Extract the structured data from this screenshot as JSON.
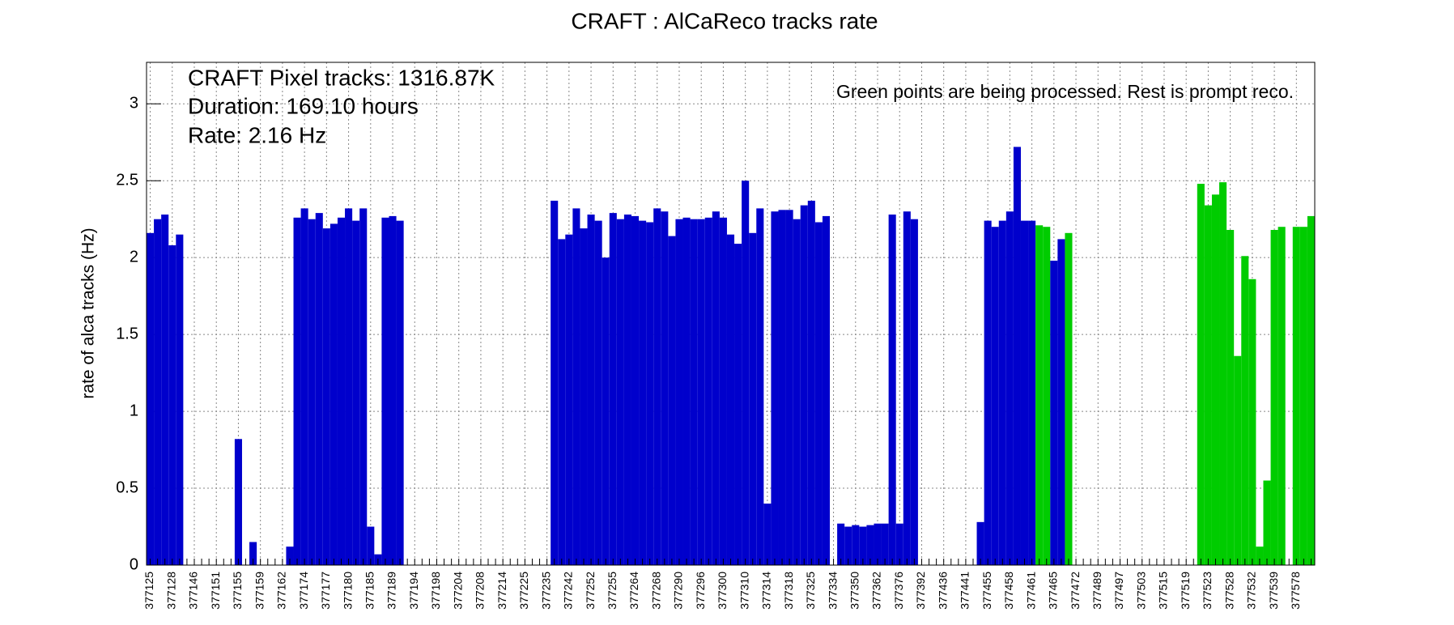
{
  "chart_data": {
    "type": "bar",
    "title": "CRAFT : AlCaReco tracks rate",
    "y_label": "rate of alca tracks (Hz)",
    "annotations": [
      "CRAFT Pixel tracks: 1316.87K",
      "Duration: 169.10 hours",
      "Rate: 2.16 Hz",
      "Green points are being processed. Rest is prompt reco."
    ],
    "categories": [
      "377125",
      null,
      null,
      "377128",
      null,
      null,
      "377146",
      null,
      null,
      "377151",
      null,
      null,
      "377155",
      null,
      null,
      "377159",
      null,
      null,
      "377162",
      null,
      null,
      "377174",
      null,
      null,
      "377177",
      null,
      null,
      "377180",
      null,
      null,
      "377185",
      null,
      null,
      "377189",
      null,
      null,
      "377194",
      null,
      null,
      "377198",
      null,
      null,
      "377204",
      null,
      null,
      "377208",
      null,
      null,
      "377214",
      null,
      null,
      "377225",
      null,
      null,
      "377235",
      null,
      null,
      "377242",
      null,
      null,
      "377252",
      null,
      null,
      "377255",
      null,
      null,
      "377264",
      null,
      null,
      "377268",
      null,
      null,
      "377290",
      null,
      null,
      "377296",
      null,
      null,
      "377300",
      null,
      null,
      "377310",
      null,
      null,
      "377314",
      null,
      null,
      "377318",
      null,
      null,
      "377325",
      null,
      null,
      "377334",
      null,
      null,
      "377350",
      null,
      null,
      "377362",
      null,
      null,
      "377376",
      null,
      null,
      "377392",
      null,
      null,
      "377436",
      null,
      null,
      "377441",
      null,
      null,
      "377455",
      null,
      null,
      "377458",
      null,
      null,
      "377461",
      null,
      null,
      "377465",
      null,
      null,
      "377472",
      null,
      null,
      "377489",
      null,
      null,
      "377497",
      null,
      null,
      "377503",
      null,
      null,
      "377515",
      null,
      null,
      "377519",
      null,
      null,
      "377523",
      null,
      null,
      "377528",
      null,
      null,
      "377532",
      null,
      null,
      "377539",
      null,
      null,
      "377578",
      null,
      null
    ],
    "values": [
      2.16,
      2.25,
      2.28,
      2.08,
      2.15,
      0,
      0,
      0,
      0,
      0,
      0,
      0,
      0.82,
      0,
      0.15,
      0,
      0,
      0,
      0,
      0.12,
      2.26,
      2.32,
      2.25,
      2.29,
      2.19,
      2.22,
      2.26,
      2.32,
      2.24,
      2.32,
      0.25,
      0.07,
      2.26,
      2.27,
      2.24,
      0,
      0,
      0,
      0,
      0,
      0,
      0,
      0,
      0,
      0,
      0,
      0,
      0,
      0,
      0,
      0,
      0,
      0,
      0,
      0,
      2.37,
      2.12,
      2.15,
      2.32,
      2.19,
      2.28,
      2.24,
      2.0,
      2.29,
      2.25,
      2.28,
      2.27,
      2.24,
      2.23,
      2.32,
      2.3,
      2.14,
      2.25,
      2.26,
      2.25,
      2.25,
      2.26,
      2.3,
      2.26,
      2.15,
      2.09,
      2.5,
      2.16,
      2.32,
      0.4,
      2.3,
      2.31,
      2.31,
      2.25,
      2.34,
      2.37,
      2.23,
      2.27,
      0,
      0.27,
      0.25,
      0.26,
      0.25,
      0.26,
      0.27,
      0.27,
      2.28,
      0.27,
      2.3,
      2.25,
      0,
      0,
      0,
      0,
      0,
      0,
      0,
      0,
      0.28,
      2.24,
      2.2,
      2.24,
      2.3,
      2.72,
      2.24,
      2.24,
      2.21,
      2.2,
      1.98,
      2.12,
      2.16,
      0,
      0,
      0,
      0,
      0,
      0,
      0,
      0,
      0,
      0,
      0,
      0,
      0,
      0,
      0,
      0,
      0,
      2.48,
      2.34,
      2.41,
      2.49,
      2.18,
      1.36,
      2.01,
      1.86,
      0.12,
      0.55,
      2.18,
      2.2,
      0,
      2.2,
      2.2,
      2.27
    ],
    "colors": [
      "#0000cc",
      "#0000cc",
      "#0000cc",
      "#0000cc",
      "#0000cc",
      "#0000cc",
      "#0000cc",
      "#0000cc",
      "#0000cc",
      "#0000cc",
      "#0000cc",
      "#0000cc",
      "#0000cc",
      "#0000cc",
      "#0000cc",
      "#0000cc",
      "#0000cc",
      "#0000cc",
      "#0000cc",
      "#0000cc",
      "#0000cc",
      "#0000cc",
      "#0000cc",
      "#0000cc",
      "#0000cc",
      "#0000cc",
      "#0000cc",
      "#0000cc",
      "#0000cc",
      "#0000cc",
      "#0000cc",
      "#0000cc",
      "#0000cc",
      "#0000cc",
      "#0000cc",
      "#0000cc",
      "#0000cc",
      "#0000cc",
      "#0000cc",
      "#0000cc",
      "#0000cc",
      "#0000cc",
      "#0000cc",
      "#0000cc",
      "#0000cc",
      "#0000cc",
      "#0000cc",
      "#0000cc",
      "#0000cc",
      "#0000cc",
      "#0000cc",
      "#0000cc",
      "#0000cc",
      "#0000cc",
      "#0000cc",
      "#0000cc",
      "#0000cc",
      "#0000cc",
      "#0000cc",
      "#0000cc",
      "#0000cc",
      "#0000cc",
      "#0000cc",
      "#0000cc",
      "#0000cc",
      "#0000cc",
      "#0000cc",
      "#0000cc",
      "#0000cc",
      "#0000cc",
      "#0000cc",
      "#0000cc",
      "#0000cc",
      "#0000cc",
      "#0000cc",
      "#0000cc",
      "#0000cc",
      "#0000cc",
      "#0000cc",
      "#0000cc",
      "#0000cc",
      "#0000cc",
      "#0000cc",
      "#0000cc",
      "#0000cc",
      "#0000cc",
      "#0000cc",
      "#0000cc",
      "#0000cc",
      "#0000cc",
      "#0000cc",
      "#0000cc",
      "#0000cc",
      "#0000cc",
      "#0000cc",
      "#0000cc",
      "#0000cc",
      "#0000cc",
      "#0000cc",
      "#0000cc",
      "#0000cc",
      "#0000cc",
      "#0000cc",
      "#0000cc",
      "#0000cc",
      "#0000cc",
      "#0000cc",
      "#0000cc",
      "#0000cc",
      "#0000cc",
      "#0000cc",
      "#0000cc",
      "#0000cc",
      "#0000cc",
      "#0000cc",
      "#0000cc",
      "#0000cc",
      "#0000cc",
      "#0000cc",
      "#0000cc",
      "#0000cc",
      "#00cc00",
      "#00cc00",
      "#0000cc",
      "#0000cc",
      "#00cc00",
      "#0000cc",
      "#0000cc",
      "#0000cc",
      "#0000cc",
      "#0000cc",
      "#0000cc",
      "#0000cc",
      "#0000cc",
      "#0000cc",
      "#0000cc",
      "#0000cc",
      "#0000cc",
      "#0000cc",
      "#0000cc",
      "#0000cc",
      "#0000cc",
      "#0000cc",
      "#00cc00",
      "#00cc00",
      "#00cc00",
      "#00cc00",
      "#00cc00",
      "#00cc00",
      "#00cc00",
      "#00cc00",
      "#00cc00",
      "#00cc00",
      "#00cc00",
      "#00cc00",
      "#00cc00",
      "#00cc00",
      "#00cc00",
      "#00cc00"
    ],
    "ylim": [
      0,
      3.27
    ],
    "yticks": [
      0,
      0.5,
      1,
      1.5,
      2,
      2.5,
      3
    ],
    "grid": true
  }
}
